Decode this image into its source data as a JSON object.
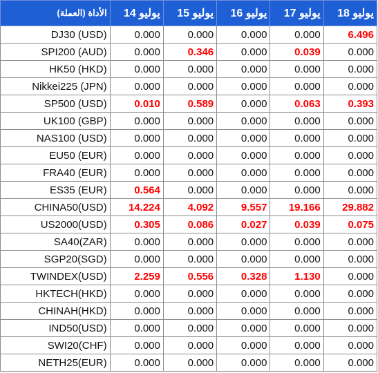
{
  "header": {
    "instrument": "الأداة (العملة)",
    "dates": [
      "يوليو 14",
      "يوليو 15",
      "يوليو 16",
      "يوليو 17",
      "يوليو 18"
    ]
  },
  "rows": [
    {
      "instrument": "DJ30 (USD)",
      "values": [
        "0.000",
        "0.000",
        "0.000",
        "0.000",
        "6.496"
      ]
    },
    {
      "instrument": "SPI200 (AUD)",
      "values": [
        "0.000",
        "0.346",
        "0.000",
        "0.039",
        "0.000"
      ]
    },
    {
      "instrument": "HK50 (HKD)",
      "values": [
        "0.000",
        "0.000",
        "0.000",
        "0.000",
        "0.000"
      ]
    },
    {
      "instrument": "Nikkei225 (JPN)",
      "values": [
        "0.000",
        "0.000",
        "0.000",
        "0.000",
        "0.000"
      ]
    },
    {
      "instrument": "SP500 (USD)",
      "values": [
        "0.010",
        "0.589",
        "0.000",
        "0.063",
        "0.393"
      ]
    },
    {
      "instrument": "UK100 (GBP)",
      "values": [
        "0.000",
        "0.000",
        "0.000",
        "0.000",
        "0.000"
      ]
    },
    {
      "instrument": "NAS100 (USD)",
      "values": [
        "0.000",
        "0.000",
        "0.000",
        "0.000",
        "0.000"
      ]
    },
    {
      "instrument": "EU50 (EUR)",
      "values": [
        "0.000",
        "0.000",
        "0.000",
        "0.000",
        "0.000"
      ]
    },
    {
      "instrument": "FRA40 (EUR)",
      "values": [
        "0.000",
        "0.000",
        "0.000",
        "0.000",
        "0.000"
      ]
    },
    {
      "instrument": "ES35 (EUR)",
      "values": [
        "0.564",
        "0.000",
        "0.000",
        "0.000",
        "0.000"
      ]
    },
    {
      "instrument": "CHINA50(USD)",
      "values": [
        "14.224",
        "4.092",
        "9.557",
        "19.166",
        "29.882"
      ]
    },
    {
      "instrument": "US2000(USD)",
      "values": [
        "0.305",
        "0.086",
        "0.027",
        "0.039",
        "0.075"
      ]
    },
    {
      "instrument": "SA40(ZAR)",
      "values": [
        "0.000",
        "0.000",
        "0.000",
        "0.000",
        "0.000"
      ]
    },
    {
      "instrument": "SGP20(SGD)",
      "values": [
        "0.000",
        "0.000",
        "0.000",
        "0.000",
        "0.000"
      ]
    },
    {
      "instrument": "TWINDEX(USD)",
      "values": [
        "2.259",
        "0.556",
        "0.328",
        "1.130",
        "0.000"
      ]
    },
    {
      "instrument": "HKTECH(HKD)",
      "values": [
        "0.000",
        "0.000",
        "0.000",
        "0.000",
        "0.000"
      ]
    },
    {
      "instrument": "CHINAH(HKD)",
      "values": [
        "0.000",
        "0.000",
        "0.000",
        "0.000",
        "0.000"
      ]
    },
    {
      "instrument": "IND50(USD)",
      "values": [
        "0.000",
        "0.000",
        "0.000",
        "0.000",
        "0.000"
      ]
    },
    {
      "instrument": "SWI20(CHF)",
      "values": [
        "0.000",
        "0.000",
        "0.000",
        "0.000",
        "0.000"
      ]
    },
    {
      "instrument": "NETH25(EUR)",
      "values": [
        "0.000",
        "0.000",
        "0.000",
        "0.000",
        "0.000"
      ]
    }
  ],
  "colors": {
    "header_bg": "#1f5fd6",
    "header_text": "#ffffff",
    "nonzero_value": "#ff0000",
    "zero_value": "#111111"
  }
}
